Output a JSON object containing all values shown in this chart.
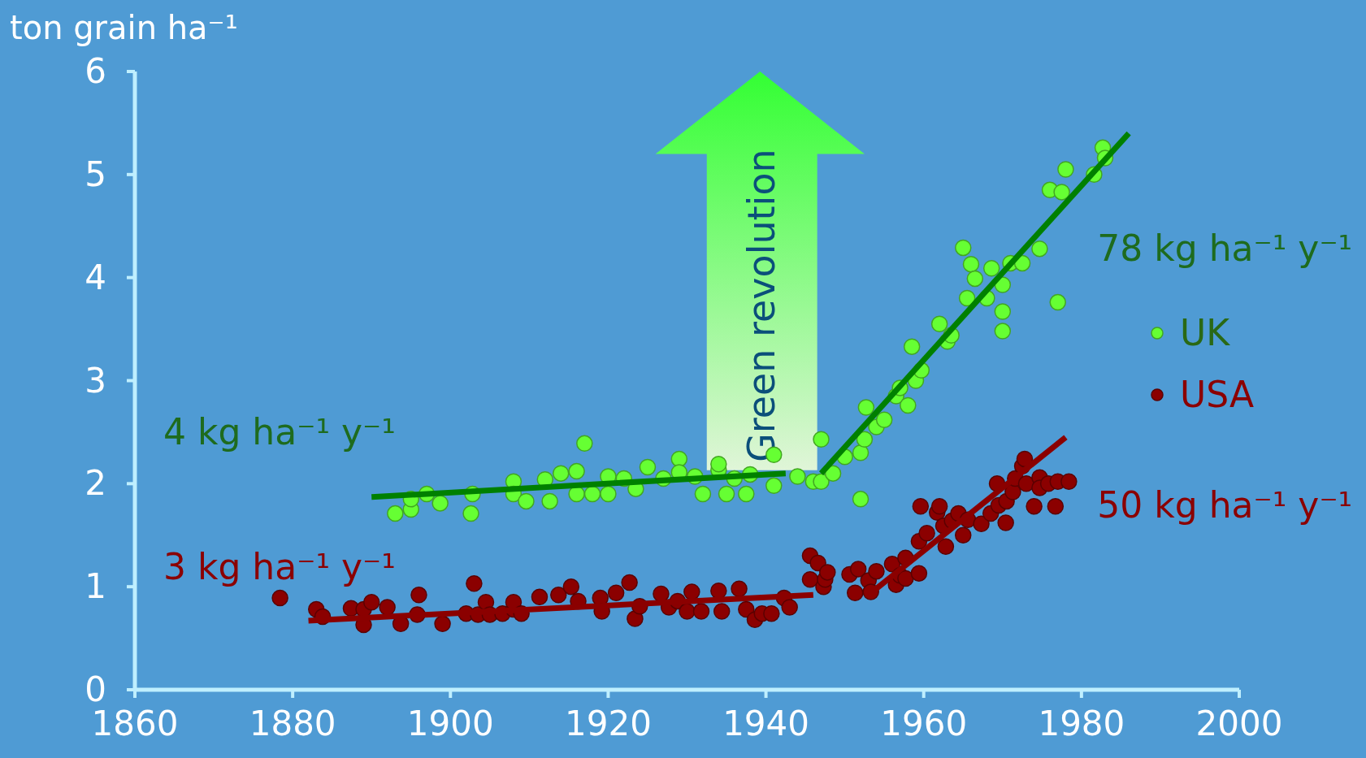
{
  "chart_data": {
    "type": "scatter",
    "ylabel": "ton grain ha⁻¹",
    "xlim": [
      1860,
      2000
    ],
    "ylim": [
      0,
      6
    ],
    "xticks": [
      1860,
      1880,
      1900,
      1920,
      1940,
      1960,
      1980,
      2000
    ],
    "yticks": [
      0,
      1,
      2,
      3,
      4,
      5,
      6
    ],
    "grid": false,
    "legend": "right",
    "series": [
      {
        "name": "UK",
        "marker": "circle",
        "color": "#66ff33",
        "x": [
          1893,
          1895,
          1895,
          1897,
          1898.7,
          1902.6,
          1902.8,
          1908,
          1908,
          1909.6,
          1912,
          1912.6,
          1914,
          1916,
          1916,
          1917,
          1918,
          1920,
          1920,
          1922,
          1923.5,
          1925,
          1927,
          1929,
          1929,
          1931,
          1932,
          1934,
          1934,
          1935,
          1936,
          1937.5,
          1938,
          1941,
          1941,
          1944,
          1946,
          1947,
          1947,
          1948.5,
          1950,
          1952,
          1952,
          1952.5,
          1952.7,
          1954,
          1955,
          1956.5,
          1957,
          1958,
          1958.5,
          1959,
          1959.7,
          1962,
          1963,
          1963.5,
          1965,
          1965.5,
          1966,
          1966.5,
          1968,
          1968.6,
          1970,
          1970,
          1970,
          1971,
          1972.5,
          1974.7,
          1976,
          1977,
          1977.5,
          1978,
          1981.6,
          1982.7,
          1983
        ],
        "values": [
          1.71,
          1.75,
          1.85,
          1.9,
          1.81,
          1.71,
          1.9,
          2.02,
          1.9,
          1.83,
          2.04,
          1.83,
          2.1,
          1.9,
          2.12,
          2.39,
          1.9,
          2.07,
          1.9,
          2.05,
          1.95,
          2.16,
          2.05,
          2.24,
          2.11,
          2.07,
          1.9,
          2.13,
          2.19,
          1.9,
          2.05,
          1.9,
          2.09,
          2.28,
          1.98,
          2.07,
          2.02,
          2.43,
          2.02,
          2.1,
          2.26,
          1.85,
          2.3,
          2.43,
          2.74,
          2.55,
          2.62,
          2.85,
          2.93,
          2.76,
          3.33,
          3.0,
          3.1,
          3.55,
          3.38,
          3.44,
          4.29,
          3.8,
          4.13,
          3.99,
          3.8,
          4.09,
          3.93,
          3.67,
          3.48,
          4.14,
          4.14,
          4.28,
          4.85,
          3.76,
          4.83,
          5.05,
          5.0,
          5.26,
          5.16
        ]
      },
      {
        "name": "USA",
        "marker": "circle",
        "color": "#8b0000",
        "x": [
          1878.4,
          1883,
          1883.8,
          1887.4,
          1889,
          1889,
          1890,
          1892,
          1893.7,
          1896,
          1895.8,
          1899,
          1902,
          1903,
          1903.5,
          1904.5,
          1905,
          1906.6,
          1908,
          1908,
          1909,
          1911.3,
          1913.7,
          1915.3,
          1916.2,
          1919,
          1919.2,
          1921,
          1922.7,
          1923.4,
          1924,
          1926.7,
          1927.7,
          1928.8,
          1930.6,
          1930,
          1931.8,
          1934,
          1934.4,
          1936.6,
          1937.5,
          1938.6,
          1939.5,
          1940.7,
          1942.3,
          1943,
          1945.6,
          1946.6,
          1945.6,
          1947.3,
          1947.5,
          1947.8,
          1950.6,
          1951.3,
          1951.7,
          1953,
          1953.3,
          1954,
          1956,
          1956.5,
          1957,
          1957.7,
          1957.7,
          1959.4,
          1959.4,
          1959.6,
          1960.4,
          1961.7,
          1962,
          1962.5,
          1962.8,
          1963.6,
          1964.4,
          1965,
          1965.6,
          1967.3,
          1968.5,
          1969.5,
          1969.3,
          1970.4,
          1970.5,
          1971.3,
          1971.6,
          1972.5,
          1972.8,
          1973,
          1974,
          1974.7,
          1974.7,
          1975.8,
          1976.7,
          1977,
          1978.4
        ],
        "values": [
          0.89,
          0.78,
          0.71,
          0.79,
          0.63,
          0.78,
          0.85,
          0.8,
          0.64,
          0.92,
          0.73,
          0.64,
          0.74,
          1.03,
          0.73,
          0.85,
          0.73,
          0.74,
          0.78,
          0.85,
          0.74,
          0.9,
          0.92,
          1.0,
          0.86,
          0.89,
          0.76,
          0.94,
          1.04,
          0.69,
          0.81,
          0.93,
          0.8,
          0.86,
          0.95,
          0.76,
          0.76,
          0.96,
          0.76,
          0.98,
          0.78,
          0.68,
          0.74,
          0.74,
          0.89,
          0.8,
          1.3,
          1.23,
          1.07,
          1.0,
          1.07,
          1.14,
          1.12,
          0.94,
          1.17,
          1.06,
          0.95,
          1.15,
          1.22,
          1.02,
          1.11,
          1.28,
          1.08,
          1.44,
          1.13,
          1.78,
          1.52,
          1.72,
          1.78,
          1.59,
          1.39,
          1.64,
          1.71,
          1.5,
          1.65,
          1.61,
          1.71,
          1.79,
          2.0,
          1.62,
          1.83,
          1.92,
          2.05,
          2.17,
          2.24,
          2.0,
          1.78,
          2.06,
          1.96,
          2.0,
          1.78,
          2.02,
          2.02
        ]
      },
      {
        "type": "line",
        "color": "#008000",
        "x": [
          1890,
          1942.5
        ],
        "values": [
          1.87,
          2.1
        ]
      },
      {
        "type": "line",
        "color": "#008000",
        "x": [
          1947,
          1986
        ],
        "values": [
          2.1,
          5.4
        ]
      },
      {
        "type": "line",
        "color": "#8b0000",
        "x": [
          1882,
          1946
        ],
        "values": [
          0.67,
          0.92
        ]
      },
      {
        "type": "line",
        "color": "#8b0000",
        "x": [
          1953,
          1978
        ],
        "values": [
          0.92,
          2.45
        ]
      }
    ],
    "annotations": [
      "4 kg ha⁻¹ y⁻¹",
      "78 kg ha⁻¹ y⁻¹",
      "3 kg ha⁻¹ y⁻¹",
      "50 kg ha⁻¹ y⁻¹",
      "Green revolution"
    ]
  }
}
